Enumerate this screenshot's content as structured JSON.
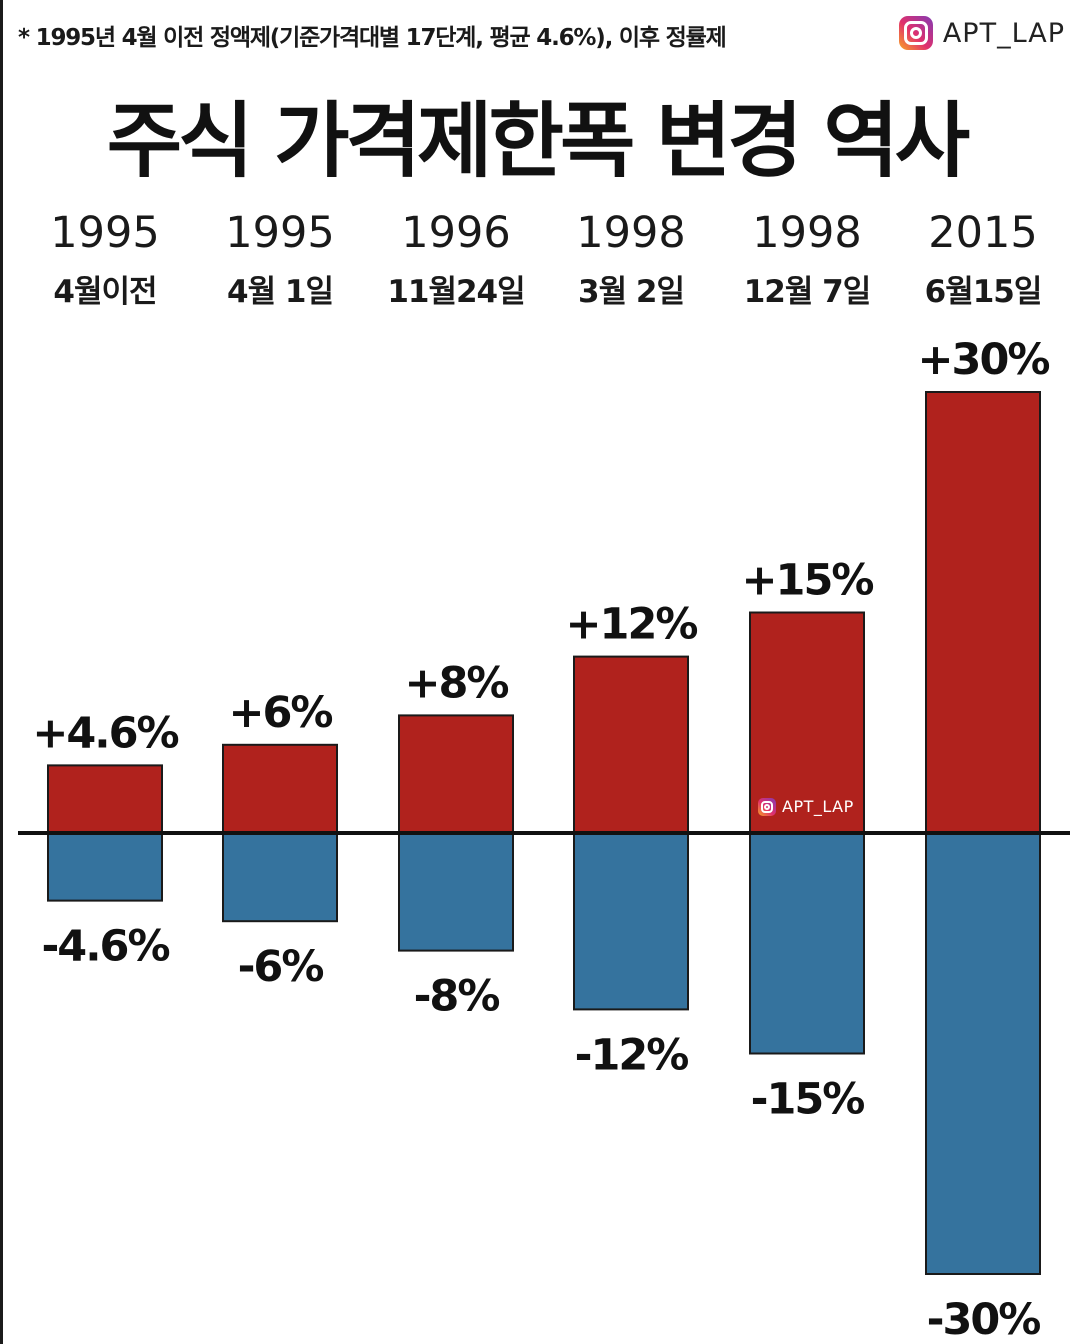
{
  "note": "* 1995년 4월 이전 정액제(기준가격대별 17단계, 평균 4.6%), 이후 정률제",
  "brand": {
    "name": "APT_LAP",
    "icon": "instagram-icon"
  },
  "title": "주식 가격제한폭 변경 역사",
  "watermark": {
    "text": "APT_LAP",
    "icon": "instagram-icon"
  },
  "colors": {
    "positive": "#b0221d",
    "negative": "#35739e",
    "baseline": "#111111"
  },
  "chart_data": {
    "type": "bar",
    "title": "주식 가격제한폭 변경 역사",
    "categories": [
      {
        "year": "1995",
        "date": "4월이전"
      },
      {
        "year": "1995",
        "date": "4월 1일"
      },
      {
        "year": "1996",
        "date": "11월24일"
      },
      {
        "year": "1998",
        "date": "3월 2일"
      },
      {
        "year": "1998",
        "date": "12월 7일"
      },
      {
        "year": "2015",
        "date": "6월15일"
      }
    ],
    "series": [
      {
        "values": [
          4.6,
          6,
          8,
          12,
          15,
          30
        ],
        "labels": [
          "+4.6%",
          "+6%",
          "+8%",
          "+12%",
          "+15%",
          "+30%"
        ]
      },
      {
        "values": [
          -4.6,
          -6,
          -8,
          -12,
          -15,
          -30
        ],
        "labels": [
          "-4.6%",
          "-6%",
          "-8%",
          "-12%",
          "-15%",
          "-30%"
        ]
      }
    ],
    "ylim": [
      -30,
      30
    ],
    "grid": false,
    "legend": "none"
  }
}
